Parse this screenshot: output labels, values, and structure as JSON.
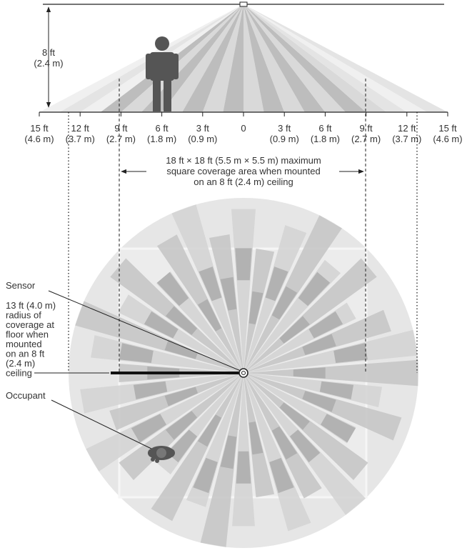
{
  "height_label": {
    "ft": "8 ft",
    "m": "(2.4 m)"
  },
  "ticks": [
    {
      "ft": "15 ft",
      "m": "(4.6 m)"
    },
    {
      "ft": "12 ft",
      "m": "(3.7 m)"
    },
    {
      "ft": "9 ft",
      "m": "(2.7 m)"
    },
    {
      "ft": "6 ft",
      "m": "(1.8 m)"
    },
    {
      "ft": "3 ft",
      "m": "(0.9 m)"
    },
    {
      "ft": "0"
    },
    {
      "ft": "3 ft",
      "m": "(0.9 m)"
    },
    {
      "ft": "6 ft",
      "m": "(1.8 m)"
    },
    {
      "ft": "9 ft",
      "m": "(2.7 m)"
    },
    {
      "ft": "12 ft",
      "m": "(3.7 m)"
    },
    {
      "ft": "15 ft",
      "m": "(4.6 m)"
    }
  ],
  "coverage_note": [
    "18 ft × 18 ft (5.5 m × 5.5 m) maximum",
    "square coverage area when mounted",
    "on an 8 ft (2.4 m) ceiling"
  ],
  "callouts": {
    "sensor": "Sensor",
    "radius": [
      "13 ft (4.0 m)",
      "radius of",
      "coverage at",
      "floor when",
      "mounted",
      "on an 8 ft",
      "(2.4 m)",
      "ceiling"
    ],
    "occupant": "Occupant"
  }
}
